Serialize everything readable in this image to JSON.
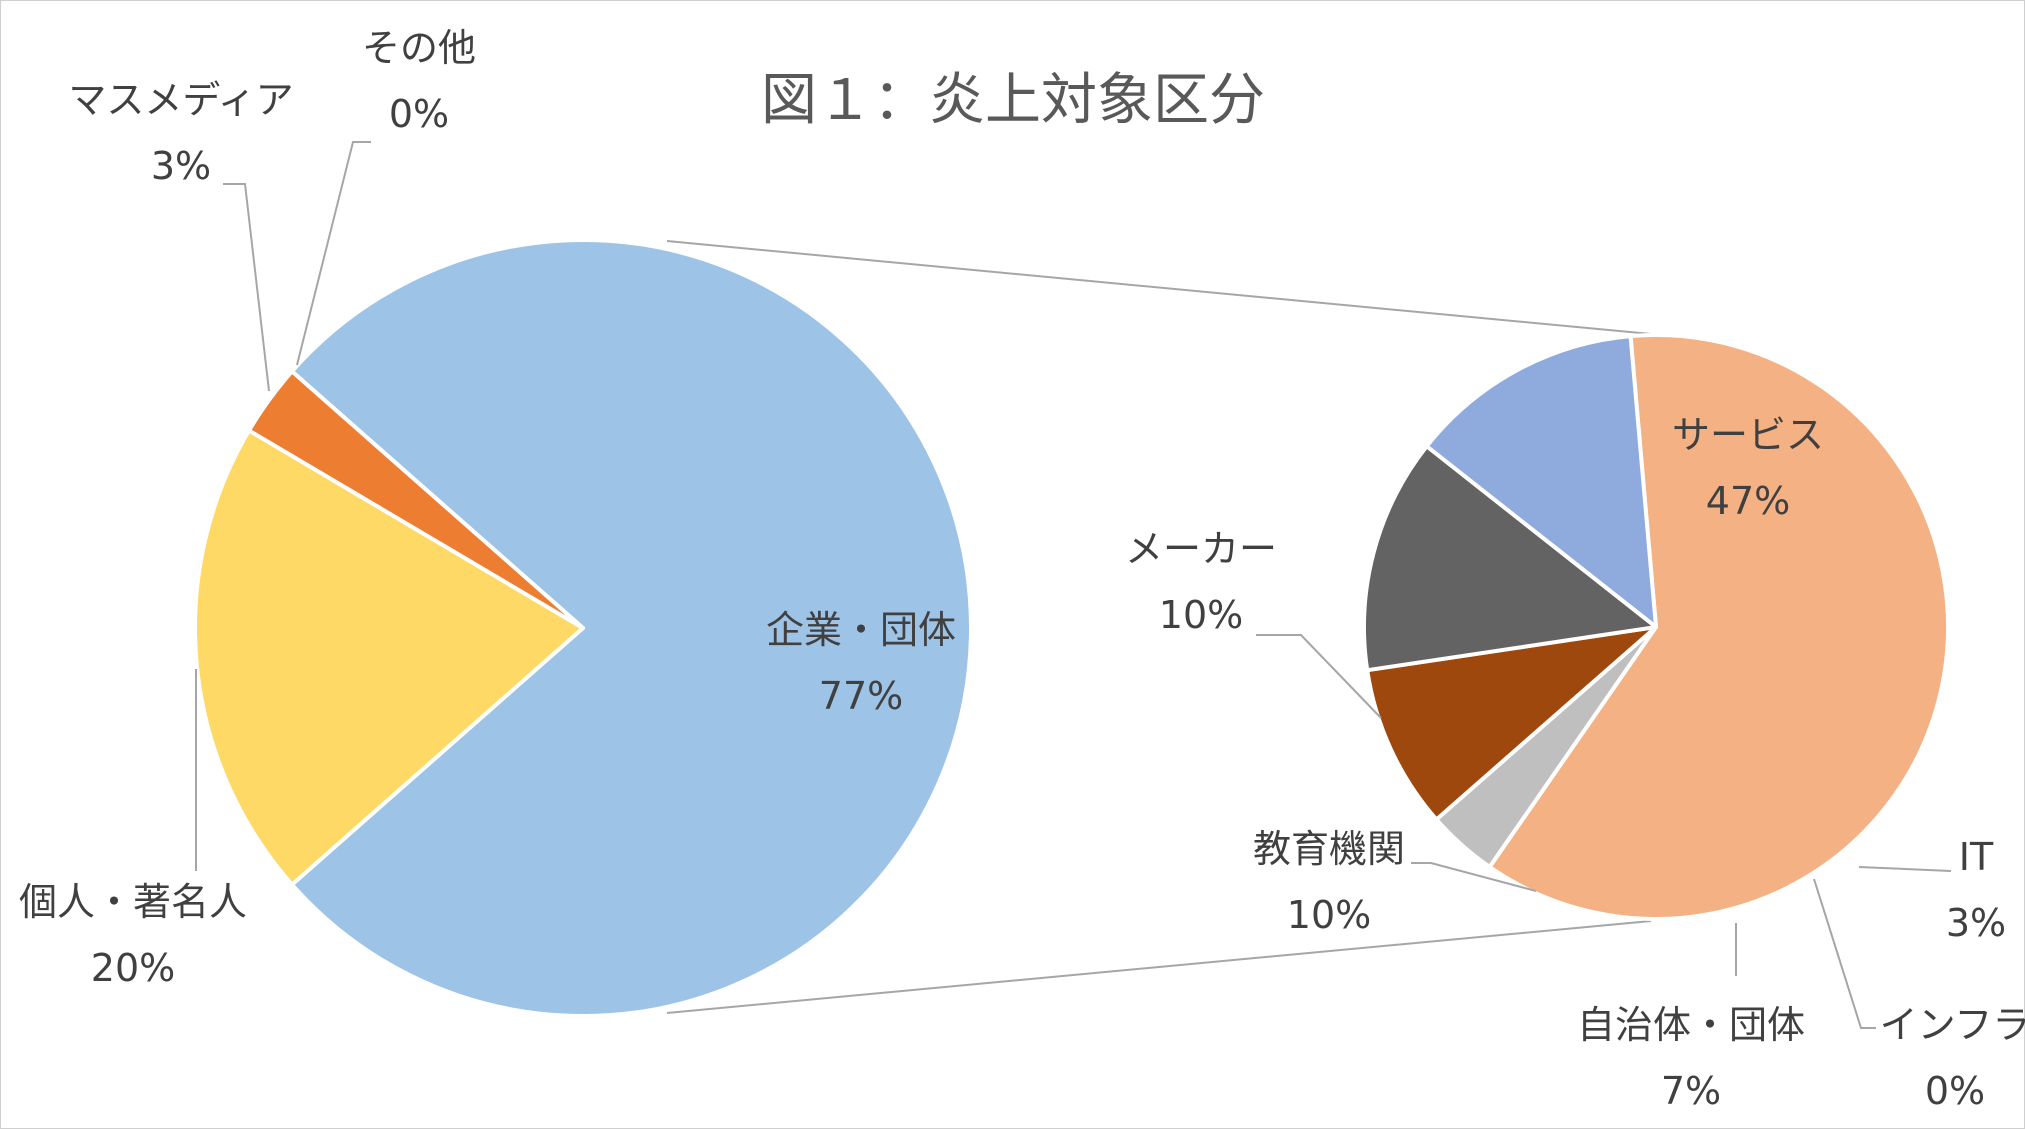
{
  "chart_data": {
    "type": "pie",
    "subtype": "pie-of-pie",
    "title": "図１：炎上対象区分",
    "primary": {
      "slices": [
        {
          "name": "企業・団体",
          "value": 77,
          "label": "77%",
          "color": "#9DC3E6"
        },
        {
          "name": "個人・著名人",
          "value": 20,
          "label": "20%",
          "color": "#FFD966"
        },
        {
          "name": "マスメディア",
          "value": 3,
          "label": "3%",
          "color": "#ED7D31"
        },
        {
          "name": "その他",
          "value": 0,
          "label": "0%",
          "color": "#7F7F7F"
        }
      ]
    },
    "secondary": {
      "parent": "企業・団体",
      "slices": [
        {
          "name": "サービス",
          "value": 47,
          "label": "47%",
          "color": "#F4B183"
        },
        {
          "name": "IT",
          "value": 3,
          "label": "3%",
          "color": "#BFBFBF"
        },
        {
          "name": "インフラ",
          "value": 0,
          "label": "0%",
          "color": "#A5A5A5"
        },
        {
          "name": "自治体・団体",
          "value": 7,
          "label": "7%",
          "color": "#9E480E"
        },
        {
          "name": "教育機関",
          "value": 10,
          "label": "10%",
          "color": "#636363"
        },
        {
          "name": "メーカー",
          "value": 10,
          "label": "10%",
          "color": "#8FAADC"
        }
      ]
    }
  }
}
